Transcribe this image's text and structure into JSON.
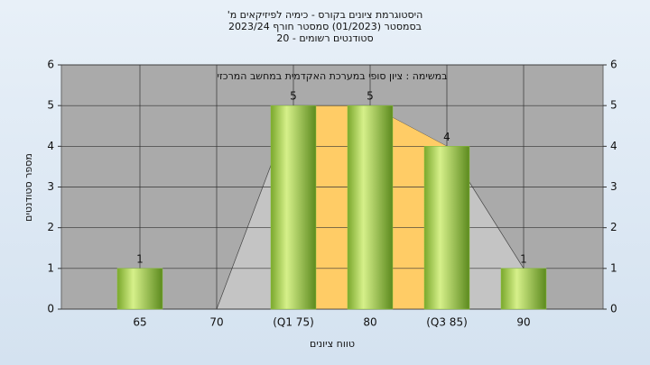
{
  "chart_data": {
    "type": "bar",
    "title_lines": [
      "היסטוגרמת ציונים בקורס - כימיה לפיזיקאים מ'",
      "בסמסטר (01/2023)  סמסטר חורף 2023/24",
      "סטודנטים רשומים - 20"
    ],
    "annotation": "במשימה : ציון סופי במערכת האקדמית במחשב המרכזי",
    "x_label": "טווח ציונים",
    "y_label": "מספר סטודנטים",
    "categories": [
      "65",
      "70",
      "(Q1 75)",
      "80",
      "(Q3 85)",
      "90"
    ],
    "values": [
      1,
      0,
      5,
      5,
      4,
      1
    ],
    "value_labels": [
      "1",
      null,
      "5",
      "5",
      "4",
      "1"
    ],
    "color": "#8cc43c",
    "area_color": "#c4c4c4",
    "band_color": "#ffcc66",
    "ylim": [
      0,
      6
    ],
    "yticks": [
      0,
      1,
      2,
      3,
      4,
      5,
      6
    ],
    "grid": true
  }
}
